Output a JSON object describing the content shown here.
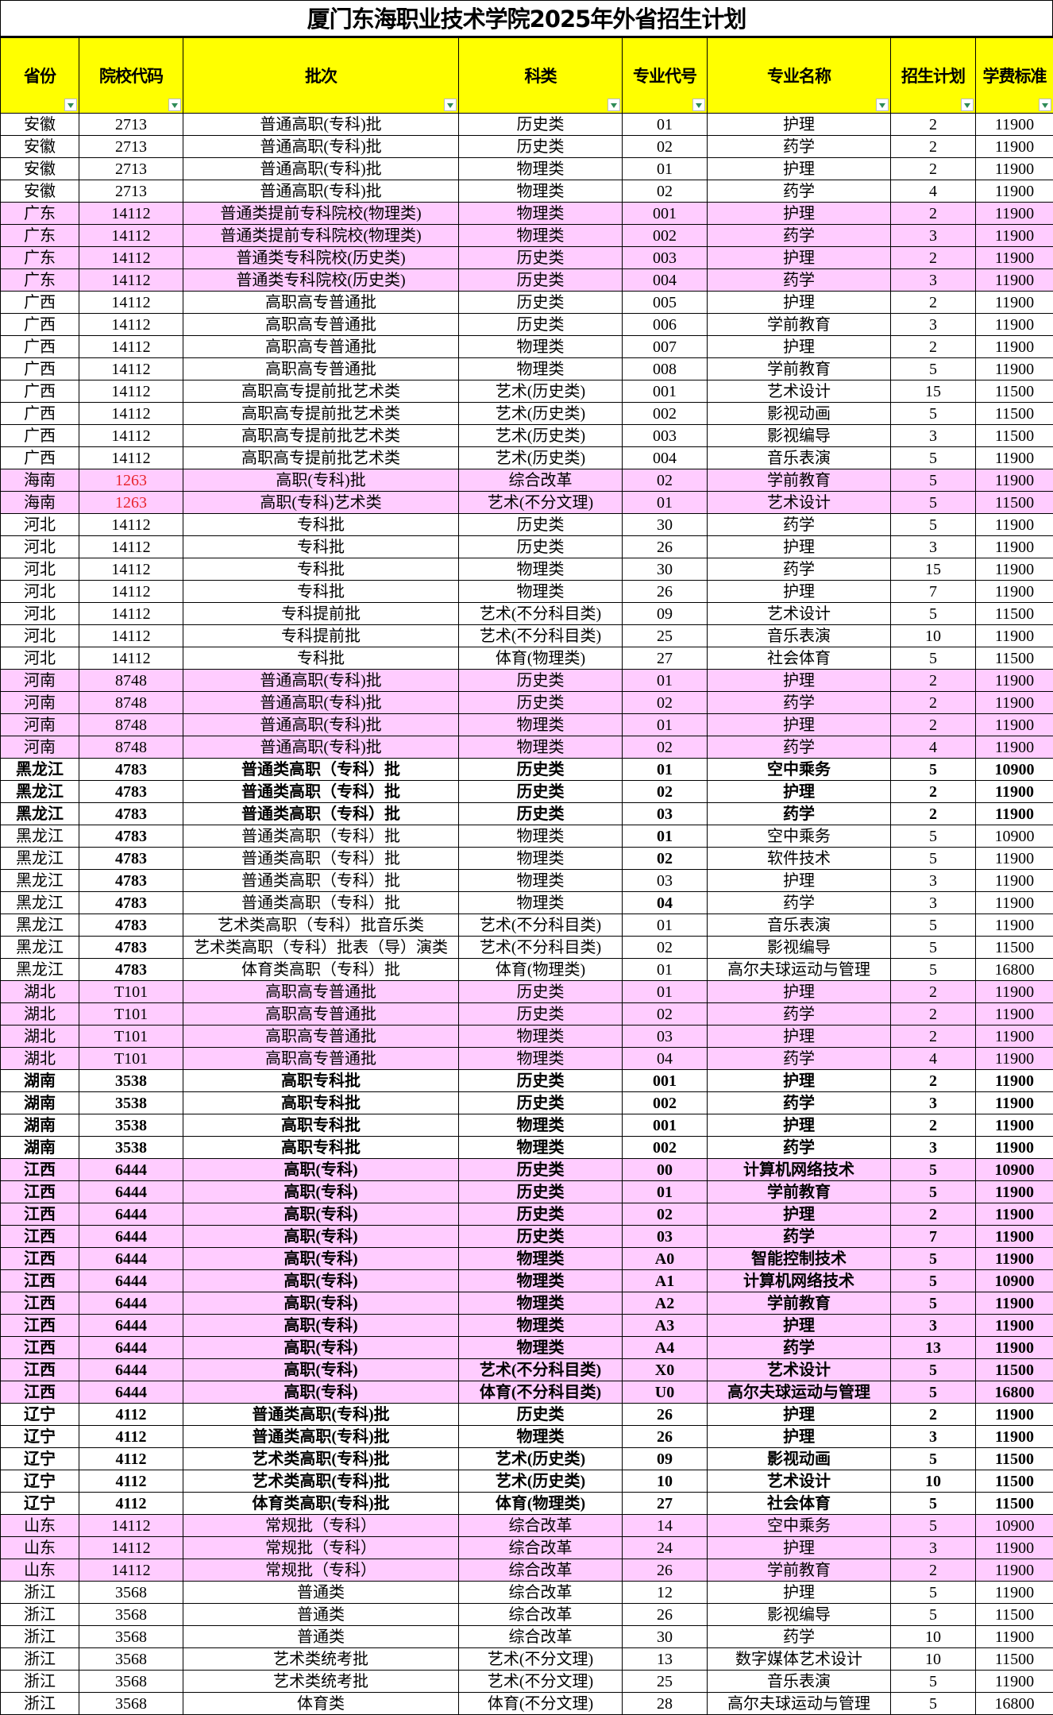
{
  "title": "厦门东海职业技术学院2025年外省招生计划",
  "headers": [
    "省份",
    "院校代码",
    "批次",
    "科类",
    "专业代号",
    "专业名称",
    "招生计划",
    "学费标准"
  ],
  "colors": {
    "header_bg": "#ffff00",
    "highlight_bg": "#ffccff",
    "red_text": "#e8242e"
  },
  "rows": [
    {
      "c": [
        "安徽",
        "2713",
        "普通高职(专科)批",
        "历史类",
        "01",
        "护理",
        "2",
        "11900"
      ]
    },
    {
      "c": [
        "安徽",
        "2713",
        "普通高职(专科)批",
        "历史类",
        "02",
        "药学",
        "2",
        "11900"
      ]
    },
    {
      "c": [
        "安徽",
        "2713",
        "普通高职(专科)批",
        "物理类",
        "01",
        "护理",
        "2",
        "11900"
      ]
    },
    {
      "c": [
        "安徽",
        "2713",
        "普通高职(专科)批",
        "物理类",
        "02",
        "药学",
        "4",
        "11900"
      ]
    },
    {
      "c": [
        "广东",
        "14112",
        "普通类提前专科院校(物理类)",
        "物理类",
        "001",
        "护理",
        "2",
        "11900"
      ],
      "hl": true
    },
    {
      "c": [
        "广东",
        "14112",
        "普通类提前专科院校(物理类)",
        "物理类",
        "002",
        "药学",
        "3",
        "11900"
      ],
      "hl": true
    },
    {
      "c": [
        "广东",
        "14112",
        "普通类专科院校(历史类)",
        "历史类",
        "003",
        "护理",
        "2",
        "11900"
      ],
      "hl": true
    },
    {
      "c": [
        "广东",
        "14112",
        "普通类专科院校(历史类)",
        "历史类",
        "004",
        "药学",
        "3",
        "11900"
      ],
      "hl": true
    },
    {
      "c": [
        "广西",
        "14112",
        "高职高专普通批",
        "历史类",
        "005",
        "护理",
        "2",
        "11900"
      ]
    },
    {
      "c": [
        "广西",
        "14112",
        "高职高专普通批",
        "历史类",
        "006",
        "学前教育",
        "3",
        "11900"
      ]
    },
    {
      "c": [
        "广西",
        "14112",
        "高职高专普通批",
        "物理类",
        "007",
        "护理",
        "2",
        "11900"
      ]
    },
    {
      "c": [
        "广西",
        "14112",
        "高职高专普通批",
        "物理类",
        "008",
        "学前教育",
        "5",
        "11900"
      ]
    },
    {
      "c": [
        "广西",
        "14112",
        "高职高专提前批艺术类",
        "艺术(历史类)",
        "001",
        "艺术设计",
        "15",
        "11500"
      ]
    },
    {
      "c": [
        "广西",
        "14112",
        "高职高专提前批艺术类",
        "艺术(历史类)",
        "002",
        "影视动画",
        "5",
        "11500"
      ]
    },
    {
      "c": [
        "广西",
        "14112",
        "高职高专提前批艺术类",
        "艺术(历史类)",
        "003",
        "影视编导",
        "3",
        "11500"
      ]
    },
    {
      "c": [
        "广西",
        "14112",
        "高职高专提前批艺术类",
        "艺术(历史类)",
        "004",
        "音乐表演",
        "5",
        "11900"
      ]
    },
    {
      "c": [
        "海南",
        "1263",
        "高职(专科)批",
        "综合改革",
        "02",
        "学前教育",
        "5",
        "11900"
      ],
      "hl": true,
      "red": [
        1
      ]
    },
    {
      "c": [
        "海南",
        "1263",
        "高职(专科)艺术类",
        "艺术(不分文理)",
        "01",
        "艺术设计",
        "5",
        "11500"
      ],
      "hl": true,
      "red": [
        1
      ]
    },
    {
      "c": [
        "河北",
        "14112",
        "专科批",
        "历史类",
        "30",
        "药学",
        "5",
        "11900"
      ]
    },
    {
      "c": [
        "河北",
        "14112",
        "专科批",
        "历史类",
        "26",
        "护理",
        "3",
        "11900"
      ]
    },
    {
      "c": [
        "河北",
        "14112",
        "专科批",
        "物理类",
        "30",
        "药学",
        "15",
        "11900"
      ]
    },
    {
      "c": [
        "河北",
        "14112",
        "专科批",
        "物理类",
        "26",
        "护理",
        "7",
        "11900"
      ]
    },
    {
      "c": [
        "河北",
        "14112",
        "专科提前批",
        "艺术(不分科目类)",
        "09",
        "艺术设计",
        "5",
        "11500"
      ]
    },
    {
      "c": [
        "河北",
        "14112",
        "专科提前批",
        "艺术(不分科目类)",
        "25",
        "音乐表演",
        "10",
        "11900"
      ]
    },
    {
      "c": [
        "河北",
        "14112",
        "专科批",
        "体育(物理类)",
        "27",
        "社会体育",
        "5",
        "11500"
      ]
    },
    {
      "c": [
        "河南",
        "8748",
        "普通高职(专科)批",
        "历史类",
        "01",
        "护理",
        "2",
        "11900"
      ],
      "hl": true
    },
    {
      "c": [
        "河南",
        "8748",
        "普通高职(专科)批",
        "历史类",
        "02",
        "药学",
        "2",
        "11900"
      ],
      "hl": true
    },
    {
      "c": [
        "河南",
        "8748",
        "普通高职(专科)批",
        "物理类",
        "01",
        "护理",
        "2",
        "11900"
      ],
      "hl": true
    },
    {
      "c": [
        "河南",
        "8748",
        "普通高职(专科)批",
        "物理类",
        "02",
        "药学",
        "4",
        "11900"
      ],
      "hl": true
    },
    {
      "c": [
        "黑龙江",
        "4783",
        "普通类高职（专科）批",
        "历史类",
        "01",
        "空中乘务",
        "5",
        "10900"
      ],
      "bold": true
    },
    {
      "c": [
        "黑龙江",
        "4783",
        "普通类高职（专科）批",
        "历史类",
        "02",
        "护理",
        "2",
        "11900"
      ],
      "bold": true
    },
    {
      "c": [
        "黑龙江",
        "4783",
        "普通类高职（专科）批",
        "历史类",
        "03",
        "药学",
        "2",
        "11900"
      ],
      "bold": true
    },
    {
      "c": [
        "黑龙江",
        "4783",
        "普通类高职（专科）批",
        "物理类",
        "01",
        "空中乘务",
        "5",
        "10900"
      ],
      "b": [
        1,
        4
      ]
    },
    {
      "c": [
        "黑龙江",
        "4783",
        "普通类高职（专科）批",
        "物理类",
        "02",
        "软件技术",
        "5",
        "11900"
      ],
      "b": [
        1,
        4
      ]
    },
    {
      "c": [
        "黑龙江",
        "4783",
        "普通类高职（专科）批",
        "物理类",
        "03",
        "护理",
        "3",
        "11900"
      ],
      "b": [
        1
      ]
    },
    {
      "c": [
        "黑龙江",
        "4783",
        "普通类高职（专科）批",
        "物理类",
        "04",
        "药学",
        "3",
        "11900"
      ],
      "b": [
        1,
        4
      ]
    },
    {
      "c": [
        "黑龙江",
        "4783",
        "艺术类高职（专科）批音乐类",
        "艺术(不分科目类)",
        "01",
        "音乐表演",
        "5",
        "11900"
      ],
      "b": [
        1
      ]
    },
    {
      "c": [
        "黑龙江",
        "4783",
        "艺术类高职（专科）批表（导）演类",
        "艺术(不分科目类)",
        "02",
        "影视编导",
        "5",
        "11500"
      ],
      "b": [
        1
      ]
    },
    {
      "c": [
        "黑龙江",
        "4783",
        "体育类高职（专科）批",
        "体育(物理类)",
        "01",
        "高尔夫球运动与管理",
        "5",
        "16800"
      ],
      "b": [
        1
      ]
    },
    {
      "c": [
        "湖北",
        "T101",
        "高职高专普通批",
        "历史类",
        "01",
        "护理",
        "2",
        "11900"
      ],
      "hl": true
    },
    {
      "c": [
        "湖北",
        "T101",
        "高职高专普通批",
        "历史类",
        "02",
        "药学",
        "2",
        "11900"
      ],
      "hl": true
    },
    {
      "c": [
        "湖北",
        "T101",
        "高职高专普通批",
        "物理类",
        "03",
        "护理",
        "2",
        "11900"
      ],
      "hl": true
    },
    {
      "c": [
        "湖北",
        "T101",
        "高职高专普通批",
        "物理类",
        "04",
        "药学",
        "4",
        "11900"
      ],
      "hl": true
    },
    {
      "c": [
        "湖南",
        "3538",
        "高职专科批",
        "历史类",
        "001",
        "护理",
        "2",
        "11900"
      ],
      "bold": true
    },
    {
      "c": [
        "湖南",
        "3538",
        "高职专科批",
        "历史类",
        "002",
        "药学",
        "3",
        "11900"
      ],
      "bold": true
    },
    {
      "c": [
        "湖南",
        "3538",
        "高职专科批",
        "物理类",
        "001",
        "护理",
        "2",
        "11900"
      ],
      "bold": true
    },
    {
      "c": [
        "湖南",
        "3538",
        "高职专科批",
        "物理类",
        "002",
        "药学",
        "3",
        "11900"
      ],
      "bold": true
    },
    {
      "c": [
        "江西",
        "6444",
        "高职(专科)",
        "历史类",
        "00",
        "计算机网络技术",
        "5",
        "10900"
      ],
      "hl": true,
      "bold": true
    },
    {
      "c": [
        "江西",
        "6444",
        "高职(专科)",
        "历史类",
        "01",
        "学前教育",
        "5",
        "11900"
      ],
      "hl": true,
      "bold": true
    },
    {
      "c": [
        "江西",
        "6444",
        "高职(专科)",
        "历史类",
        "02",
        "护理",
        "2",
        "11900"
      ],
      "hl": true,
      "bold": true
    },
    {
      "c": [
        "江西",
        "6444",
        "高职(专科)",
        "历史类",
        "03",
        "药学",
        "7",
        "11900"
      ],
      "hl": true,
      "bold": true
    },
    {
      "c": [
        "江西",
        "6444",
        "高职(专科)",
        "物理类",
        "A0",
        "智能控制技术",
        "5",
        "11900"
      ],
      "hl": true,
      "bold": true
    },
    {
      "c": [
        "江西",
        "6444",
        "高职(专科)",
        "物理类",
        "A1",
        "计算机网络技术",
        "5",
        "10900"
      ],
      "hl": true,
      "bold": true
    },
    {
      "c": [
        "江西",
        "6444",
        "高职(专科)",
        "物理类",
        "A2",
        "学前教育",
        "5",
        "11900"
      ],
      "hl": true,
      "bold": true
    },
    {
      "c": [
        "江西",
        "6444",
        "高职(专科)",
        "物理类",
        "A3",
        "护理",
        "3",
        "11900"
      ],
      "hl": true,
      "bold": true
    },
    {
      "c": [
        "江西",
        "6444",
        "高职(专科)",
        "物理类",
        "A4",
        "药学",
        "13",
        "11900"
      ],
      "hl": true,
      "bold": true
    },
    {
      "c": [
        "江西",
        "6444",
        "高职(专科)",
        "艺术(不分科目类)",
        "X0",
        "艺术设计",
        "5",
        "11500"
      ],
      "hl": true,
      "bold": true
    },
    {
      "c": [
        "江西",
        "6444",
        "高职(专科)",
        "体育(不分科目类)",
        "U0",
        "高尔夫球运动与管理",
        "5",
        "16800"
      ],
      "hl": true,
      "bold": true
    },
    {
      "c": [
        "辽宁",
        "4112",
        "普通类高职(专科)批",
        "历史类",
        "26",
        "护理",
        "2",
        "11900"
      ],
      "bold": true
    },
    {
      "c": [
        "辽宁",
        "4112",
        "普通类高职(专科)批",
        "物理类",
        "26",
        "护理",
        "3",
        "11900"
      ],
      "bold": true
    },
    {
      "c": [
        "辽宁",
        "4112",
        "艺术类高职(专科)批",
        "艺术(历史类)",
        "09",
        "影视动画",
        "5",
        "11500"
      ],
      "bold": true
    },
    {
      "c": [
        "辽宁",
        "4112",
        "艺术类高职(专科)批",
        "艺术(历史类)",
        "10",
        "艺术设计",
        "10",
        "11500"
      ],
      "bold": true
    },
    {
      "c": [
        "辽宁",
        "4112",
        "体育类高职(专科)批",
        "体育(物理类)",
        "27",
        "社会体育",
        "5",
        "11500"
      ],
      "bold": true
    },
    {
      "c": [
        "山东",
        "14112",
        "常规批（专科）",
        "综合改革",
        "14",
        "空中乘务",
        "5",
        "10900"
      ],
      "hl": true
    },
    {
      "c": [
        "山东",
        "14112",
        "常规批（专科）",
        "综合改革",
        "24",
        "护理",
        "3",
        "11900"
      ],
      "hl": true
    },
    {
      "c": [
        "山东",
        "14112",
        "常规批（专科）",
        "综合改革",
        "26",
        "学前教育",
        "2",
        "11900"
      ],
      "hl": true
    },
    {
      "c": [
        "浙江",
        "3568",
        "普通类",
        "综合改革",
        "12",
        "护理",
        "5",
        "11900"
      ]
    },
    {
      "c": [
        "浙江",
        "3568",
        "普通类",
        "综合改革",
        "26",
        "影视编导",
        "5",
        "11500"
      ]
    },
    {
      "c": [
        "浙江",
        "3568",
        "普通类",
        "综合改革",
        "30",
        "药学",
        "10",
        "11900"
      ]
    },
    {
      "c": [
        "浙江",
        "3568",
        "艺术类统考批",
        "艺术(不分文理)",
        "13",
        "数字媒体艺术设计",
        "10",
        "11500"
      ]
    },
    {
      "c": [
        "浙江",
        "3568",
        "艺术类统考批",
        "艺术(不分文理)",
        "25",
        "音乐表演",
        "5",
        "11900"
      ]
    },
    {
      "c": [
        "浙江",
        "3568",
        "体育类",
        "体育(不分文理)",
        "28",
        "高尔夫球运动与管理",
        "5",
        "16800"
      ]
    }
  ]
}
